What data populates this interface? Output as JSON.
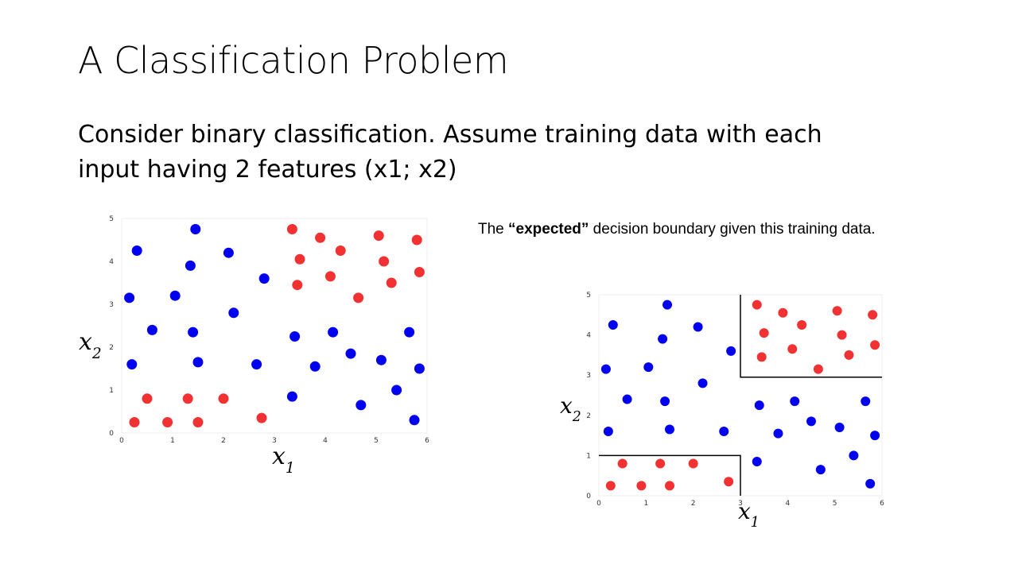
{
  "slide": {
    "title": "A Classification Problem",
    "body": "Consider binary classification. Assume training data with each input having 2 features (x1; x2)",
    "caption": {
      "prefix": "The ",
      "emphasis": "“expected”",
      "suffix": " decision boundary given this training data."
    }
  },
  "colors": {
    "class_blue": "#0000f0",
    "class_red": "#f23232",
    "boundary": "#000000"
  },
  "chart_data": [
    {
      "type": "scatter",
      "title": "",
      "xlabel": "x1",
      "ylabel": "x2",
      "xlim": [
        0,
        6
      ],
      "ylim": [
        0,
        5
      ],
      "xticks": [
        "0",
        "1",
        "2",
        "3",
        "4",
        "5",
        "6"
      ],
      "yticks": [
        "0",
        "1",
        "2",
        "3",
        "4",
        "5"
      ],
      "grid": false,
      "series": [
        {
          "color": "#0000f0",
          "points": [
            [
              0.3,
              4.25
            ],
            [
              1.45,
              4.75
            ],
            [
              2.1,
              4.2
            ],
            [
              1.35,
              3.9
            ],
            [
              0.15,
              3.15
            ],
            [
              1.05,
              3.2
            ],
            [
              2.8,
              3.6
            ],
            [
              2.2,
              2.8
            ],
            [
              0.6,
              2.4
            ],
            [
              1.4,
              2.35
            ],
            [
              3.4,
              2.25
            ],
            [
              4.15,
              2.35
            ],
            [
              5.65,
              2.35
            ],
            [
              0.2,
              1.6
            ],
            [
              1.5,
              1.65
            ],
            [
              2.65,
              1.6
            ],
            [
              3.8,
              1.55
            ],
            [
              4.5,
              1.85
            ],
            [
              5.1,
              1.7
            ],
            [
              5.85,
              1.5
            ],
            [
              3.35,
              0.85
            ],
            [
              5.4,
              1.0
            ],
            [
              4.7,
              0.65
            ],
            [
              5.75,
              0.3
            ]
          ]
        },
        {
          "color": "#f23232",
          "points": [
            [
              3.35,
              4.75
            ],
            [
              3.9,
              4.55
            ],
            [
              5.05,
              4.6
            ],
            [
              5.8,
              4.5
            ],
            [
              3.5,
              4.05
            ],
            [
              4.3,
              4.25
            ],
            [
              5.15,
              4.0
            ],
            [
              3.45,
              3.45
            ],
            [
              4.1,
              3.65
            ],
            [
              5.3,
              3.5
            ],
            [
              5.85,
              3.75
            ],
            [
              4.65,
              3.15
            ],
            [
              0.5,
              0.8
            ],
            [
              1.3,
              0.8
            ],
            [
              2.0,
              0.8
            ],
            [
              0.25,
              0.25
            ],
            [
              0.9,
              0.25
            ],
            [
              1.5,
              0.25
            ],
            [
              2.75,
              0.35
            ]
          ]
        }
      ]
    },
    {
      "type": "scatter",
      "title": "",
      "xlabel": "x1",
      "ylabel": "x2",
      "xlim": [
        0,
        6
      ],
      "ylim": [
        0,
        5
      ],
      "xticks": [
        "0",
        "1",
        "2",
        "3",
        "4",
        "5",
        "6"
      ],
      "yticks": [
        "0",
        "1",
        "2",
        "3",
        "4",
        "5"
      ],
      "grid": false,
      "series": [
        {
          "color": "#0000f0",
          "points": [
            [
              0.3,
              4.25
            ],
            [
              1.45,
              4.75
            ],
            [
              2.1,
              4.2
            ],
            [
              1.35,
              3.9
            ],
            [
              0.15,
              3.15
            ],
            [
              1.05,
              3.2
            ],
            [
              2.8,
              3.6
            ],
            [
              2.2,
              2.8
            ],
            [
              0.6,
              2.4
            ],
            [
              1.4,
              2.35
            ],
            [
              3.4,
              2.25
            ],
            [
              4.15,
              2.35
            ],
            [
              5.65,
              2.35
            ],
            [
              0.2,
              1.6
            ],
            [
              1.5,
              1.65
            ],
            [
              2.65,
              1.6
            ],
            [
              3.8,
              1.55
            ],
            [
              4.5,
              1.85
            ],
            [
              5.1,
              1.7
            ],
            [
              5.85,
              1.5
            ],
            [
              3.35,
              0.85
            ],
            [
              5.4,
              1.0
            ],
            [
              4.7,
              0.65
            ],
            [
              5.75,
              0.3
            ]
          ]
        },
        {
          "color": "#f23232",
          "points": [
            [
              3.35,
              4.75
            ],
            [
              3.9,
              4.55
            ],
            [
              5.05,
              4.6
            ],
            [
              5.8,
              4.5
            ],
            [
              3.5,
              4.05
            ],
            [
              4.3,
              4.25
            ],
            [
              5.15,
              4.0
            ],
            [
              3.45,
              3.45
            ],
            [
              4.1,
              3.65
            ],
            [
              5.3,
              3.5
            ],
            [
              5.85,
              3.75
            ],
            [
              4.65,
              3.15
            ],
            [
              0.5,
              0.8
            ],
            [
              1.3,
              0.8
            ],
            [
              2.0,
              0.8
            ],
            [
              0.25,
              0.25
            ],
            [
              0.9,
              0.25
            ],
            [
              1.5,
              0.25
            ],
            [
              2.75,
              0.35
            ]
          ]
        }
      ],
      "annotations": {
        "boundary_lines": [
          [
            [
              3.0,
              5.0
            ],
            [
              3.0,
              2.95
            ],
            [
              6.0,
              2.95
            ]
          ],
          [
            [
              0.0,
              1.0
            ],
            [
              3.0,
              1.0
            ],
            [
              3.0,
              0.0
            ]
          ]
        ]
      }
    }
  ]
}
